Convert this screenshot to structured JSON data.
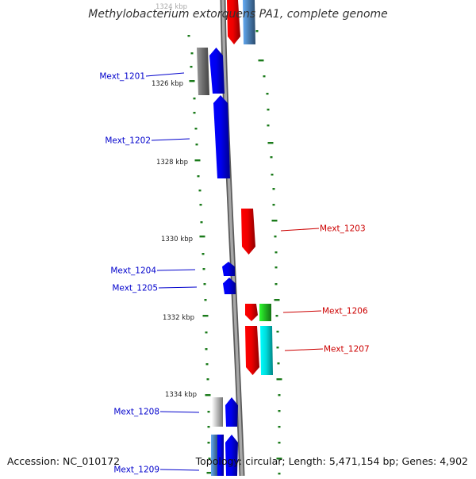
{
  "title": "Methylobacterium extorquens PA1, complete genome",
  "footer": {
    "accession": "Accession: NC_010172",
    "summary": "Topology: circular; Length: 5,471,154 bp; Genes: 4,902"
  },
  "colors": {
    "backbone": "#8c8c8c",
    "tick": "#1a7a1a",
    "left_label": "#0000cc",
    "right_label": "#cc0000",
    "blue": "#0000ee",
    "red": "#ee0000",
    "green": "#22bb22",
    "cyan": "#00dddd",
    "steel": "#4a7fb5",
    "gray": "#707070",
    "light_gray": "#c0c0c0"
  },
  "kbp_labels": [
    "1324 kbp",
    "1326 kbp",
    "1328 kbp",
    "1330 kbp",
    "1332 kbp",
    "1334 kbp"
  ],
  "genes_left": [
    "Mext_1201",
    "Mext_1202",
    "Mext_1204",
    "Mext_1205",
    "Mext_1208",
    "Mext_1209"
  ],
  "genes_right": [
    "Mext_1203",
    "Mext_1206",
    "Mext_1207"
  ]
}
